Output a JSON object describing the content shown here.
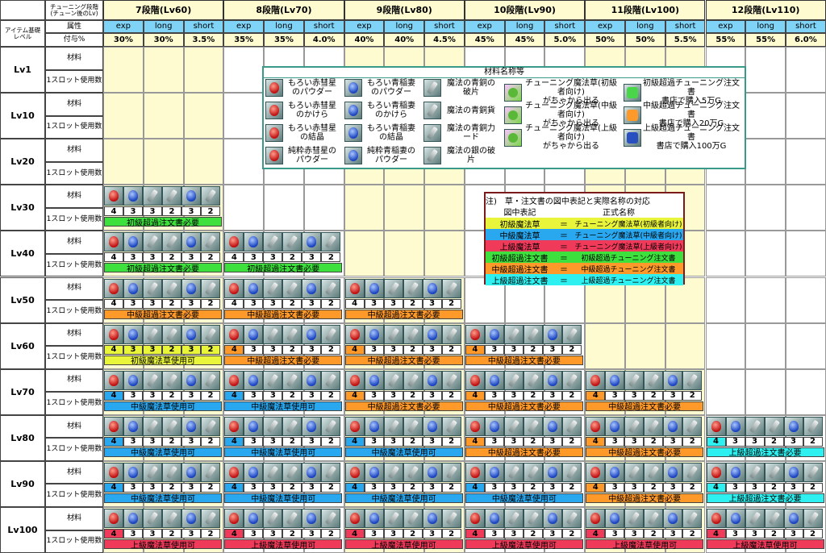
{
  "header": {
    "corner_top": "チューニング段階\n(チューン後のLv)",
    "corner_bottom": "アイテム基礎\nレベル",
    "attr_label": "属性",
    "pct_label": "付与%"
  },
  "stages": [
    {
      "title": "7段階(Lv60)",
      "attrs": [
        "exp",
        "long",
        "short"
      ],
      "pcts": [
        "30%",
        "30%",
        "3.5%"
      ]
    },
    {
      "title": "8段階(Lv70)",
      "attrs": [
        "exp",
        "long",
        "short"
      ],
      "pcts": [
        "35%",
        "35%",
        "4.0%"
      ]
    },
    {
      "title": "9段階(Lv80)",
      "attrs": [
        "exp",
        "long",
        "short"
      ],
      "pcts": [
        "40%",
        "40%",
        "4.5%"
      ]
    },
    {
      "title": "10段階(Lv90)",
      "attrs": [
        "exp",
        "long",
        "short"
      ],
      "pcts": [
        "45%",
        "45%",
        "5.0%"
      ]
    },
    {
      "title": "11段階(Lv100)",
      "attrs": [
        "exp",
        "long",
        "short"
      ],
      "pcts": [
        "50%",
        "50%",
        "5.5%"
      ]
    },
    {
      "title": "12段階(Lv110)",
      "attrs": [
        "exp",
        "long",
        "short"
      ],
      "pcts": [
        "55%",
        "55%",
        "6.0%"
      ]
    }
  ],
  "row_sub": {
    "material": "材料",
    "slot": "1スロット使用数"
  },
  "levels": [
    "Lv1",
    "Lv10",
    "Lv20",
    "Lv30",
    "Lv40",
    "Lv50",
    "Lv60",
    "Lv70",
    "Lv80",
    "Lv90",
    "Lv100"
  ],
  "entries": [
    {
      "row": 3,
      "col": 0,
      "nums": [
        "4",
        "3",
        "3",
        "2",
        "3",
        "2"
      ],
      "req": "初級超過注文書必要",
      "color": "#3de03d"
    },
    {
      "row": 4,
      "col": 0,
      "nums": [
        "4",
        "3",
        "3",
        "2",
        "3",
        "2"
      ],
      "req": "初級超過注文書必要",
      "color": "#3de03d"
    },
    {
      "row": 4,
      "col": 1,
      "nums": [
        "4",
        "3",
        "3",
        "2",
        "3",
        "2"
      ],
      "req": "初級超過注文書必要",
      "color": "#3de03d"
    },
    {
      "row": 5,
      "col": 0,
      "nums": [
        "4",
        "3",
        "3",
        "2",
        "3",
        "2"
      ],
      "req": "中級超過注文書必要",
      "color": "#ff9a2a"
    },
    {
      "row": 5,
      "col": 1,
      "nums": [
        "4",
        "3",
        "3",
        "2",
        "3",
        "2"
      ],
      "req": "中級超過注文書必要",
      "color": "#ff9a2a"
    },
    {
      "row": 5,
      "col": 2,
      "nums": [
        "4",
        "3",
        "3",
        "2",
        "3",
        "2"
      ],
      "req": "中級超過注文書必要",
      "color": "#ff9a2a"
    },
    {
      "row": 6,
      "col": 0,
      "nums": [
        "4",
        "3",
        "3",
        "2",
        "3",
        "2"
      ],
      "req": "初級魔法草使用可",
      "color": "#e8f53a"
    },
    {
      "row": 6,
      "col": 1,
      "nums": [
        "4",
        "3",
        "3",
        "2",
        "3",
        "2"
      ],
      "req": "中級超過注文書必要",
      "color": "#ff9a2a"
    },
    {
      "row": 6,
      "col": 2,
      "nums": [
        "4",
        "3",
        "3",
        "2",
        "3",
        "2"
      ],
      "req": "中級超過注文書必要",
      "color": "#ff9a2a"
    },
    {
      "row": 6,
      "col": 3,
      "nums": [
        "4",
        "3",
        "3",
        "2",
        "3",
        "2"
      ],
      "req": "中級超過注文書必要",
      "color": "#ff9a2a"
    },
    {
      "row": 7,
      "col": 0,
      "nums": [
        "4",
        "3",
        "3",
        "2",
        "3",
        "2"
      ],
      "req": "中級魔法草使用可",
      "color": "#29a8f0"
    },
    {
      "row": 7,
      "col": 1,
      "nums": [
        "4",
        "3",
        "3",
        "2",
        "3",
        "2"
      ],
      "req": "中級魔法草使用可",
      "color": "#29a8f0"
    },
    {
      "row": 7,
      "col": 2,
      "nums": [
        "4",
        "3",
        "3",
        "2",
        "3",
        "2"
      ],
      "req": "中級超過注文書必要",
      "color": "#ff9a2a"
    },
    {
      "row": 7,
      "col": 3,
      "nums": [
        "4",
        "3",
        "3",
        "2",
        "3",
        "2"
      ],
      "req": "中級超過注文書必要",
      "color": "#ff9a2a"
    },
    {
      "row": 7,
      "col": 4,
      "nums": [
        "4",
        "3",
        "3",
        "2",
        "3",
        "2"
      ],
      "req": "中級超過注文書必要",
      "color": "#ff9a2a"
    },
    {
      "row": 8,
      "col": 0,
      "nums": [
        "4",
        "3",
        "3",
        "2",
        "3",
        "2"
      ],
      "req": "中級魔法草使用可",
      "color": "#29a8f0"
    },
    {
      "row": 8,
      "col": 1,
      "nums": [
        "4",
        "3",
        "3",
        "2",
        "3",
        "2"
      ],
      "req": "中級魔法草使用可",
      "color": "#29a8f0"
    },
    {
      "row": 8,
      "col": 2,
      "nums": [
        "4",
        "3",
        "3",
        "2",
        "3",
        "2"
      ],
      "req": "中級魔法草使用可",
      "color": "#29a8f0"
    },
    {
      "row": 8,
      "col": 3,
      "nums": [
        "4",
        "3",
        "3",
        "2",
        "3",
        "2"
      ],
      "req": "中級超過注文書必要",
      "color": "#ff9a2a"
    },
    {
      "row": 8,
      "col": 4,
      "nums": [
        "4",
        "3",
        "3",
        "2",
        "3",
        "2"
      ],
      "req": "中級超過注文書必要",
      "color": "#ff9a2a"
    },
    {
      "row": 8,
      "col": 5,
      "nums": [
        "4",
        "3",
        "3",
        "2",
        "3",
        "2"
      ],
      "req": "上級超過注文書必要",
      "color": "#2ef0f0"
    },
    {
      "row": 9,
      "col": 0,
      "nums": [
        "4",
        "3",
        "3",
        "2",
        "3",
        "2"
      ],
      "req": "中級魔法草使用可",
      "color": "#29a8f0"
    },
    {
      "row": 9,
      "col": 1,
      "nums": [
        "4",
        "3",
        "3",
        "2",
        "3",
        "2"
      ],
      "req": "中級魔法草使用可",
      "color": "#29a8f0"
    },
    {
      "row": 9,
      "col": 2,
      "nums": [
        "4",
        "3",
        "3",
        "2",
        "3",
        "2"
      ],
      "req": "中級魔法草使用可",
      "color": "#29a8f0"
    },
    {
      "row": 9,
      "col": 3,
      "nums": [
        "4",
        "3",
        "3",
        "2",
        "3",
        "2"
      ],
      "req": "中級魔法草使用可",
      "color": "#29a8f0"
    },
    {
      "row": 9,
      "col": 4,
      "nums": [
        "4",
        "3",
        "3",
        "2",
        "3",
        "2"
      ],
      "req": "中級超過注文書必要",
      "color": "#ff9a2a"
    },
    {
      "row": 9,
      "col": 5,
      "nums": [
        "4",
        "3",
        "3",
        "2",
        "3",
        "2"
      ],
      "req": "上級超過注文書必要",
      "color": "#2ef0f0"
    },
    {
      "row": 10,
      "col": 0,
      "nums": [
        "4",
        "3",
        "3",
        "2",
        "3",
        "2"
      ],
      "req": "上級魔法草使用可",
      "color": "#f03a5a"
    },
    {
      "row": 10,
      "col": 1,
      "nums": [
        "4",
        "3",
        "3",
        "2",
        "3",
        "2"
      ],
      "req": "上級魔法草使用可",
      "color": "#f03a5a"
    },
    {
      "row": 10,
      "col": 2,
      "nums": [
        "4",
        "3",
        "3",
        "2",
        "3",
        "2"
      ],
      "req": "上級魔法草使用可",
      "color": "#f03a5a"
    },
    {
      "row": 10,
      "col": 3,
      "nums": [
        "4",
        "3",
        "3",
        "2",
        "3",
        "2"
      ],
      "req": "上級魔法草使用可",
      "color": "#f03a5a"
    },
    {
      "row": 10,
      "col": 4,
      "nums": [
        "4",
        "3",
        "3",
        "2",
        "3",
        "2"
      ],
      "req": "上級魔法草使用可",
      "color": "#f03a5a"
    },
    {
      "row": 10,
      "col": 5,
      "nums": [
        "4",
        "3",
        "3",
        "2",
        "3",
        "2"
      ],
      "req": "上級魔法草使用可",
      "color": "#f03a5a"
    }
  ],
  "materials_legend": {
    "title": "材料名称等",
    "items": [
      {
        "icon": "red-orb-icon",
        "text": "もろい赤彗星\nのパウダー"
      },
      {
        "icon": "blue-orb-icon",
        "text": "もろい青稲妻\nのパウダー"
      },
      {
        "icon": "gray-blade-icon",
        "text": "魔法の青銅の\n破片"
      },
      {
        "icon": "clover-icon",
        "text": "チューニング魔法草(初級者向け)\nがちゃから出る"
      },
      {
        "icon": "green-scroll-icon",
        "text": "初級超過チューニング注文書\n書店で購入5万G"
      },
      {
        "icon": "red-orb-icon",
        "text": "もろい赤彗星\nのかけら"
      },
      {
        "icon": "blue-orb-icon",
        "text": "もろい青稲妻\nのかけら"
      },
      {
        "icon": "gray-blade-icon",
        "text": "魔法の青銅貨"
      },
      {
        "icon": "clover-icon",
        "text": "チューニング魔法草(中級者向け)\nがちゃから出る"
      },
      {
        "icon": "orange-scroll-icon",
        "text": "中級超過チューニング注文書\n書店で購入20万G"
      },
      {
        "icon": "red-orb-icon",
        "text": "もろい赤彗星\nの結晶"
      },
      {
        "icon": "blue-orb-icon",
        "text": "もろい青稲妻\nの結晶"
      },
      {
        "icon": "gray-blade-icon",
        "text": "魔法の青銅力\nード"
      },
      {
        "icon": "clover-icon",
        "text": "チューニング魔法草(上級者向け)\nがちゃから出る"
      },
      {
        "icon": "blue-scroll-icon",
        "text": "上級超過チューニング注文書\n書店で購入100万G"
      },
      {
        "icon": "red-orb-icon",
        "text": "純粋赤彗星の\nパウダー"
      },
      {
        "icon": "blue-orb-icon",
        "text": "純粋青稲妻の\nパウダー"
      },
      {
        "icon": "gray-blade-icon",
        "text": "魔法の銀の破\n片"
      }
    ]
  },
  "note": {
    "title": "注)　草・注文書の図中表記と実際名称の対応",
    "col1": "図中表記",
    "col2": "正式名称",
    "rows": [
      {
        "short": "初級魔法草",
        "eq": "＝",
        "full": "チューニング魔法草(初級者向け)",
        "color": "#e8f53a"
      },
      {
        "short": "中級魔法草",
        "eq": "＝",
        "full": "チューニング魔法草(中級者向け)",
        "color": "#29a8f0"
      },
      {
        "short": "上級魔法草",
        "eq": "＝",
        "full": "チューニング魔法草(上級者向け)",
        "color": "#f03a5a"
      },
      {
        "short": "初級超過注文書",
        "eq": "＝",
        "full": "初級超過チューニング注文書",
        "color": "#3de03d"
      },
      {
        "short": "中級超過注文書",
        "eq": "＝",
        "full": "中級超過チューニング注文書",
        "color": "#ff9a2a"
      },
      {
        "short": "上級超過注文書",
        "eq": "＝",
        "full": "上級超過チューニング注文書",
        "color": "#2ef0f0"
      }
    ]
  },
  "colors": {
    "header_yellow": "#fffbd0",
    "attr_blue": "#7ed3f7",
    "legend_border": "#3a9a8a",
    "note_border": "#7a1a1a"
  }
}
